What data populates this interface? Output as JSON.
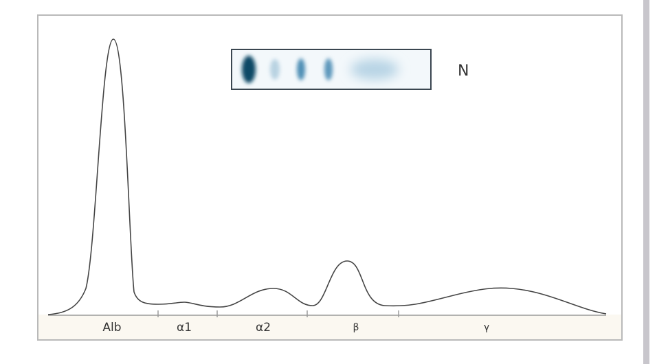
{
  "gel_label": "N",
  "fractions": [
    "Alb",
    "α1",
    "α2",
    "β",
    "γ"
  ]
}
